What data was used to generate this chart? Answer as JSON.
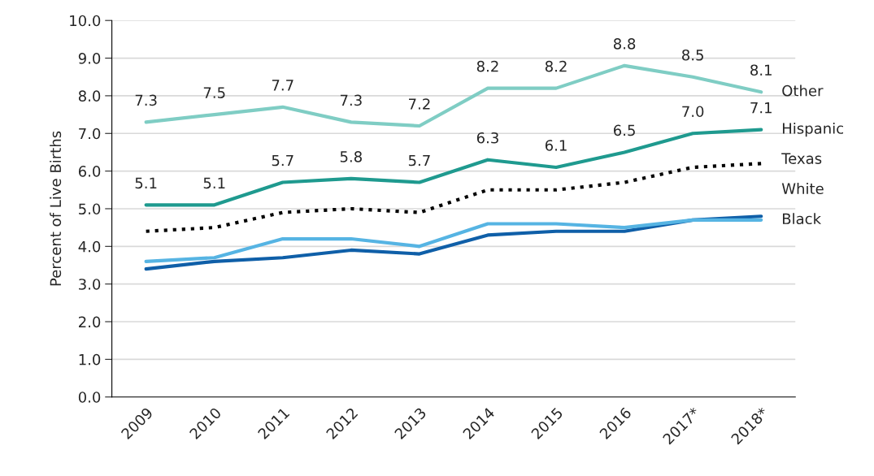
{
  "chart_data": {
    "type": "line",
    "ylabel": "Percent of Live Births",
    "categories": [
      "2009",
      "2010",
      "2011",
      "2012",
      "2013",
      "2014",
      "2015",
      "2016",
      "2017*",
      "2018*"
    ],
    "series": [
      {
        "name": "Other",
        "color": "#7fcdc4",
        "values": [
          7.3,
          7.5,
          7.7,
          7.3,
          7.2,
          8.2,
          8.2,
          8.8,
          8.5,
          8.1
        ],
        "value_labels": [
          "7.3",
          "7.5",
          "7.7",
          "7.3",
          "7.2",
          "8.2",
          "8.2",
          "8.8",
          "8.5",
          "8.1"
        ]
      },
      {
        "name": "Hispanic",
        "color": "#1f9a8f",
        "values": [
          5.1,
          5.1,
          5.7,
          5.8,
          5.7,
          6.3,
          6.1,
          6.5,
          7.0,
          7.1
        ],
        "value_labels": [
          "5.1",
          "5.1",
          "5.7",
          "5.8",
          "5.7",
          "6.3",
          "6.1",
          "6.5",
          "7.0",
          "7.1"
        ]
      },
      {
        "name": "Texas",
        "color": "#000000",
        "line_style": "dotted",
        "values": [
          4.4,
          4.5,
          4.9,
          5.0,
          4.9,
          5.5,
          5.5,
          5.7,
          6.1,
          6.2
        ]
      },
      {
        "name": "White",
        "color": "#0f5fa8",
        "values": [
          3.4,
          3.6,
          3.7,
          3.9,
          3.8,
          4.3,
          4.4,
          4.4,
          4.7,
          4.8
        ]
      },
      {
        "name": "Black",
        "color": "#56b4e3",
        "values": [
          3.6,
          3.7,
          4.2,
          4.2,
          4.0,
          4.6,
          4.6,
          4.5,
          4.7,
          4.7
        ]
      }
    ],
    "ylim": [
      0,
      10
    ],
    "yticks": [
      {
        "value": 0,
        "label": "0.0"
      },
      {
        "value": 1,
        "label": "1.0"
      },
      {
        "value": 2,
        "label": "2.0"
      },
      {
        "value": 3,
        "label": "3.0"
      },
      {
        "value": 4,
        "label": "4.0"
      },
      {
        "value": 5,
        "label": "5.0"
      },
      {
        "value": 6,
        "label": "6.0"
      },
      {
        "value": 7,
        "label": "7.0"
      },
      {
        "value": 8,
        "label": "8.0"
      },
      {
        "value": 9,
        "label": "9.0"
      },
      {
        "value": 10,
        "label": "10.0"
      }
    ],
    "grid": "y",
    "marker": "none"
  }
}
